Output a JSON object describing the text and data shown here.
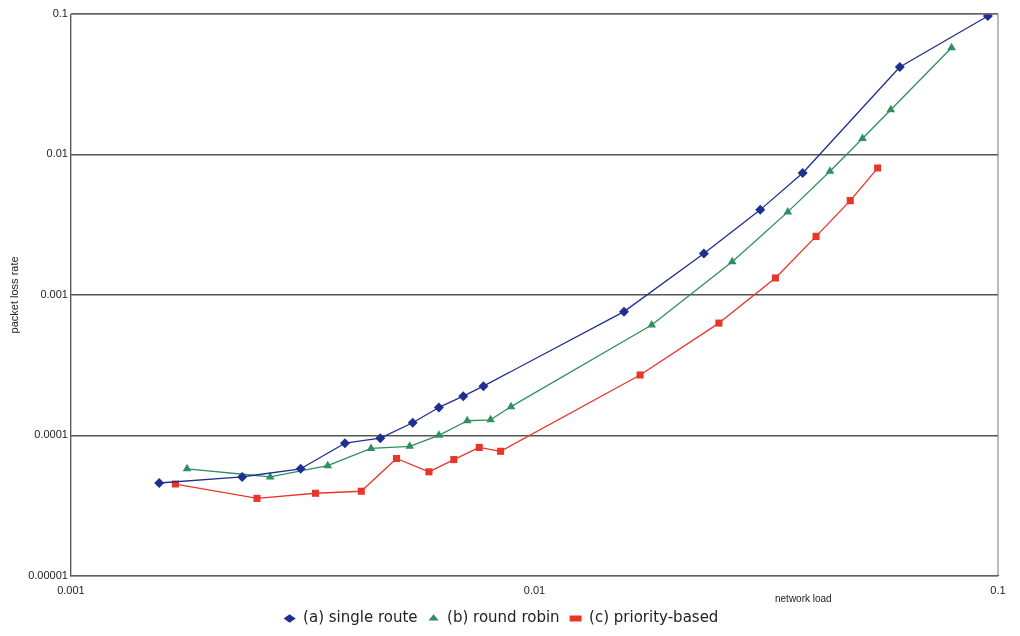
{
  "chart_data": {
    "type": "line",
    "xlabel": "network load",
    "ylabel": "packet loss rate",
    "log": "xy",
    "xlim": [
      0.001,
      0.1
    ],
    "xticks": [
      0.001,
      0.01,
      0.1
    ],
    "ylim": [
      1e-05,
      0.1
    ],
    "yticks": [
      {
        "value": 1e-05,
        "label": "0.00001"
      },
      0.0001,
      0.001,
      0.01,
      0.1
    ],
    "grid": "y",
    "legend": "bottom",
    "line_style": "solid",
    "series": [
      {
        "name": "(a) single route",
        "color": "#1f2f8f",
        "marker": "diamond",
        "x": [
          0.00155,
          0.00234,
          0.00313,
          0.0039,
          0.00465,
          0.00546,
          0.00622,
          0.00702,
          0.00776,
          0.0156,
          0.0232,
          0.0307,
          0.0379,
          0.0614,
          0.0951
        ],
        "values": [
          4.58e-05,
          5.06e-05,
          5.78e-05,
          8.79e-05,
          9.55e-05,
          0.000123,
          0.000158,
          0.00019,
          0.000224,
          0.00076,
          0.00197,
          0.00404,
          0.00738,
          0.0419,
          0.0967
        ]
      },
      {
        "name": "(b) round robin",
        "color": "#2f8f5f",
        "marker": "triangle",
        "x": [
          0.00178,
          0.00269,
          0.00358,
          0.00444,
          0.00538,
          0.00622,
          0.00716,
          0.00804,
          0.0089,
          0.0179,
          0.0267,
          0.0352,
          0.0434,
          0.051,
          0.0587,
          0.0794
        ],
        "values": [
          5.78e-05,
          5.06e-05,
          6.08e-05,
          8.07e-05,
          8.35e-05,
          0.0001,
          0.000127,
          0.000129,
          0.00016,
          0.00061,
          0.00172,
          0.0039,
          0.0076,
          0.013,
          0.0208,
          0.0575
        ]
      },
      {
        "name": "(c) priority-based",
        "color": "#e8352a",
        "marker": "square",
        "x": [
          0.00168,
          0.00252,
          0.00337,
          0.00423,
          0.00504,
          0.00592,
          0.0067,
          0.0076,
          0.00845,
          0.0169,
          0.025,
          0.0331,
          0.0405,
          0.048,
          0.055
        ],
        "values": [
          4.5e-05,
          3.56e-05,
          3.87e-05,
          4e-05,
          6.84e-05,
          5.5e-05,
          6.72e-05,
          8.2e-05,
          7.7e-05,
          0.000269,
          0.00063,
          0.00132,
          0.00261,
          0.00469,
          0.008
        ]
      }
    ]
  }
}
